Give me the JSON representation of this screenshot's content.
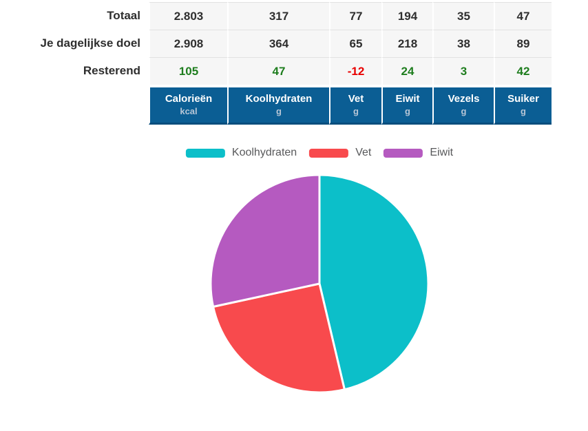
{
  "table": {
    "columns": [
      {
        "name": "Calorieën",
        "unit": "kcal"
      },
      {
        "name": "Koolhydraten",
        "unit": "g"
      },
      {
        "name": "Vet",
        "unit": "g"
      },
      {
        "name": "Eiwit",
        "unit": "g"
      },
      {
        "name": "Vezels",
        "unit": "g"
      },
      {
        "name": "Suiker",
        "unit": "g"
      }
    ],
    "rows": [
      {
        "label": "Totaal",
        "values": [
          "2.803",
          "317",
          "77",
          "194",
          "35",
          "47"
        ],
        "value_colors": [
          "dark",
          "dark",
          "dark",
          "dark",
          "dark",
          "dark"
        ]
      },
      {
        "label": "Je dagelijkse doel",
        "values": [
          "2.908",
          "364",
          "65",
          "218",
          "38",
          "89"
        ],
        "value_colors": [
          "dark",
          "dark",
          "dark",
          "dark",
          "dark",
          "dark"
        ]
      },
      {
        "label": "Resterend",
        "values": [
          "105",
          "47",
          "-12",
          "24",
          "3",
          "42"
        ],
        "value_colors": [
          "green",
          "green",
          "red",
          "green",
          "green",
          "green"
        ]
      }
    ]
  },
  "chart_data": {
    "type": "pie",
    "title": "",
    "legend_position": "top",
    "start_angle_deg": 0,
    "direction": "clockwise",
    "slices": [
      {
        "label": "Koolhydraten",
        "grams": 317,
        "percent": 46.3,
        "color": "#0cbfc9"
      },
      {
        "label": "Vet",
        "grams": 77,
        "percent": 25.3,
        "color": "#f84a4d"
      },
      {
        "label": "Eiwit",
        "grams": 194,
        "percent": 28.4,
        "color": "#b55ac0"
      }
    ]
  },
  "colors": {
    "header_background": "#0b5e94",
    "header_border_bottom": "#094e7d",
    "header_text": "#ffffff",
    "header_unit_text": "#b7c6d6",
    "cell_background": "#f6f6f6",
    "positive_value": "#1e7d1e",
    "negative_value": "#e80000",
    "legend_text": "#58595b"
  }
}
